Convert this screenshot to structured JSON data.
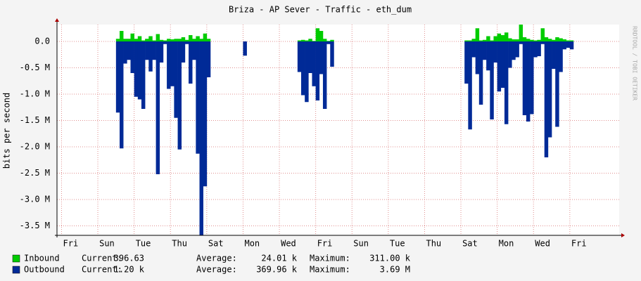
{
  "chart_data": {
    "type": "area",
    "title": "Briza - AP Sever - Traffic - eth_dum",
    "y_label": "bits per second",
    "watermark": "RRDTOOL / TOBI OETIKER",
    "xlim": [
      -0.75,
      30.22
    ],
    "xticks": [
      {
        "value": 0,
        "label": "Fri"
      },
      {
        "value": 2,
        "label": "Sun"
      },
      {
        "value": 4,
        "label": "Tue"
      },
      {
        "value": 6,
        "label": "Thu"
      },
      {
        "value": 8,
        "label": "Sat"
      },
      {
        "value": 10,
        "label": "Mon"
      },
      {
        "value": 12,
        "label": "Wed"
      },
      {
        "value": 14,
        "label": "Fri"
      },
      {
        "value": 16,
        "label": "Sun"
      },
      {
        "value": 18,
        "label": "Tue"
      },
      {
        "value": 20,
        "label": "Thu"
      },
      {
        "value": 22,
        "label": "Sat"
      },
      {
        "value": 24,
        "label": "Mon"
      },
      {
        "value": 26,
        "label": "Wed"
      },
      {
        "value": 28,
        "label": "Fri"
      }
    ],
    "ylim": [
      -3680000,
      320000
    ],
    "yticks": [
      {
        "value": 0,
        "label": "0.0"
      },
      {
        "value": -500000,
        "label": "-0.5 M"
      },
      {
        "value": -1000000,
        "label": "-1.0 M"
      },
      {
        "value": -1500000,
        "label": "-1.5 M"
      },
      {
        "value": -2000000,
        "label": "-2.0 M"
      },
      {
        "value": -2500000,
        "label": "-2.5 M"
      },
      {
        "value": -3000000,
        "label": "-3.0 M"
      },
      {
        "value": -3500000,
        "label": "-3.5 M"
      }
    ],
    "grid": true,
    "x": [
      2.5,
      2.7,
      2.9,
      3.1,
      3.3,
      3.5,
      3.7,
      3.9,
      4.1,
      4.3,
      4.5,
      4.7,
      4.9,
      5.1,
      5.3,
      5.5,
      5.7,
      5.9,
      6.1,
      6.3,
      6.5,
      6.7,
      6.9,
      7.1,
      7.3,
      7.5,
      9.5,
      12.5,
      12.7,
      12.9,
      13.1,
      13.3,
      13.5,
      13.7,
      13.9,
      14.1,
      14.3,
      21.7,
      21.9,
      22.1,
      22.3,
      22.5,
      22.7,
      22.9,
      23.1,
      23.3,
      23.5,
      23.7,
      23.9,
      24.1,
      24.3,
      24.5,
      24.7,
      24.9,
      25.1,
      25.3,
      25.5,
      25.7,
      25.9,
      26.1,
      26.3,
      26.5,
      26.7,
      26.9,
      27.1,
      27.3,
      27.5
    ],
    "series": [
      {
        "name": "Inbound",
        "color": "#00cc00",
        "values": [
          50000,
          200000,
          50000,
          50000,
          150000,
          50000,
          100000,
          20000,
          50000,
          100000,
          20000,
          140000,
          30000,
          20000,
          50000,
          40000,
          50000,
          50000,
          80000,
          30000,
          120000,
          50000,
          100000,
          50000,
          150000,
          50000,
          0,
          20000,
          30000,
          20000,
          50000,
          10000,
          250000,
          200000,
          50000,
          10000,
          30000,
          20000,
          20000,
          50000,
          250000,
          20000,
          30000,
          100000,
          20000,
          100000,
          150000,
          120000,
          170000,
          60000,
          40000,
          40000,
          320000,
          80000,
          50000,
          30000,
          20000,
          30000,
          250000,
          80000,
          50000,
          30000,
          80000,
          60000,
          40000,
          20000,
          20000
        ]
      },
      {
        "name": "Outbound",
        "color": "#002a97",
        "values": [
          -1350000,
          -2030000,
          -420000,
          -350000,
          -600000,
          -1050000,
          -1100000,
          -1280000,
          -350000,
          -570000,
          -350000,
          -2520000,
          -400000,
          -50000,
          -900000,
          -850000,
          -1450000,
          -2050000,
          -400000,
          -50000,
          -800000,
          -350000,
          -2130000,
          -3680000,
          -2750000,
          -680000,
          -270000,
          -580000,
          -1020000,
          -1150000,
          -600000,
          -850000,
          -1120000,
          -620000,
          -1280000,
          -50000,
          -480000,
          -800000,
          -1670000,
          -300000,
          -620000,
          -1200000,
          -350000,
          -550000,
          -1480000,
          -400000,
          -950000,
          -880000,
          -1570000,
          -500000,
          -350000,
          -300000,
          -50000,
          -1400000,
          -1520000,
          -1380000,
          -300000,
          -280000,
          -50000,
          -2200000,
          -1820000,
          -520000,
          -1620000,
          -580000,
          -150000,
          -120000,
          -150000
        ]
      }
    ],
    "legend_stats": [
      [
        "Current:",
        "396.63",
        "Average:",
        "24.01 k",
        "Maximum:",
        "311.00 k"
      ],
      [
        "Current:",
        "1.20 k",
        "Average:",
        "369.96 k",
        "Maximum:",
        "3.69 M"
      ]
    ]
  }
}
